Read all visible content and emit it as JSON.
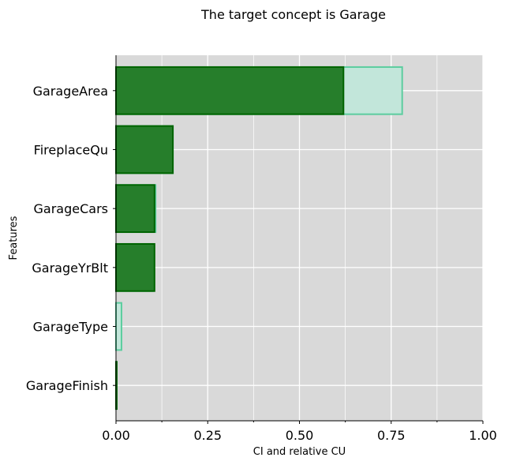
{
  "chart_data": {
    "type": "bar",
    "orientation": "horizontal",
    "title": "The target concept is Garage",
    "xlabel": "CI and relative CU",
    "ylabel": "Features",
    "xlim": [
      0,
      1.0
    ],
    "xticks": [
      0.0,
      0.25,
      0.5,
      0.75,
      1.0
    ],
    "xtick_labels": [
      "0.00",
      "0.25",
      "0.50",
      "0.75",
      "1.00"
    ],
    "grid": true,
    "categories": [
      "GarageArea",
      "FireplaceQu",
      "GarageCars",
      "GarageYrBlt",
      "GarageType",
      "GarageFinish"
    ],
    "series": [
      {
        "values": [
          0.78,
          0.155,
          0.108,
          0.1,
          0.015,
          0.002
        ],
        "color": "#c2e6da",
        "edge_color": "#5ccd9f"
      },
      {
        "values": [
          0.62,
          0.155,
          0.105,
          0.105,
          0.0,
          0.002
        ],
        "color": "#267e2b",
        "edge_color": "#006400"
      }
    ],
    "colors": {
      "plot_background": "#d9d9d9",
      "grid": "#ffffff"
    }
  }
}
